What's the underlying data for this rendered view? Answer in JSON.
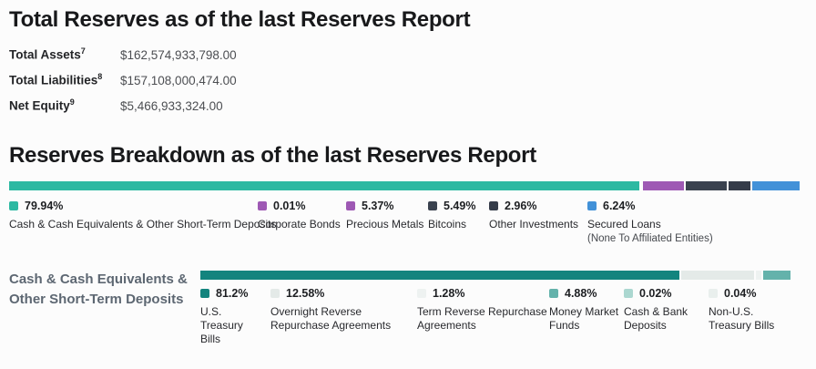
{
  "total_reserves": {
    "title": "Total Reserves as of the last Reserves Report",
    "rows": [
      {
        "label": "Total Assets",
        "footnote": "7",
        "value": "$162,574,933,798.00"
      },
      {
        "label": "Total Liabilities",
        "footnote": "8",
        "value": "$157,108,000,474.00"
      },
      {
        "label": "Net Equity",
        "footnote": "9",
        "value": "$5,466,933,324.00"
      }
    ]
  },
  "reserves_breakdown": {
    "title": "Reserves Breakdown as of the last Reserves Report",
    "items": [
      {
        "label": "Cash & Cash Equivalents & Other Short-Term Deposits",
        "pct": "79.94%",
        "value": 79.94,
        "color": "#2db9a2"
      },
      {
        "label": "Corporate Bonds",
        "pct": "0.01%",
        "value": 0.01,
        "color": "#9e59b4"
      },
      {
        "label": "Precious Metals",
        "pct": "5.37%",
        "value": 5.37,
        "color": "#9e59b4"
      },
      {
        "label": "Bitcoins",
        "pct": "5.49%",
        "value": 5.49,
        "color": "#3a424f"
      },
      {
        "label": "Other Investments",
        "pct": "2.96%",
        "value": 2.96,
        "color": "#353c49"
      },
      {
        "label": "Secured Loans",
        "sublabel": "(None To Affiliated Entities)",
        "pct": "6.24%",
        "value": 6.24,
        "color": "#4291d8"
      }
    ]
  },
  "cash_breakdown": {
    "section_label_line1": "Cash & Cash Equivalents &",
    "section_label_line2": "Other Short-Term Deposits",
    "items": [
      {
        "label": "U.S. Treasury Bills",
        "pct": "81.2%",
        "value": 81.2,
        "color": "#13847e"
      },
      {
        "label": "Overnight Reverse Repurchase Agreements",
        "pct": "12.58%",
        "value": 12.58,
        "color": "#e4eae8"
      },
      {
        "label": "Term Reverse Repurchase Agreements",
        "pct": "1.28%",
        "value": 1.28,
        "color": "#eef2f1"
      },
      {
        "label": "Money Market Funds",
        "pct": "4.88%",
        "value": 4.88,
        "color": "#64b2ab"
      },
      {
        "label": "Cash & Bank Deposits",
        "pct": "0.02%",
        "value": 0.02,
        "color": "#abd7d0"
      },
      {
        "label": "Non-U.S. Treasury Bills",
        "pct": "0.04%",
        "value": 0.04,
        "color": "#e9efed"
      }
    ]
  },
  "chart_data": [
    {
      "type": "bar",
      "variant": "stacked-horizontal",
      "title": "Reserves Breakdown as of the last Reserves Report",
      "categories": [
        "Cash & Cash Equivalents & Other Short-Term Deposits",
        "Corporate Bonds",
        "Precious Metals",
        "Bitcoins",
        "Other Investments",
        "Secured Loans (None To Affiliated Entities)"
      ],
      "values": [
        79.94,
        0.01,
        5.37,
        5.49,
        2.96,
        6.24
      ],
      "unit": "%",
      "xlim": [
        0,
        100
      ],
      "legend_position": "below",
      "colors": [
        "#2db9a2",
        "#9e59b4",
        "#9e59b4",
        "#3a424f",
        "#353c49",
        "#4291d8"
      ]
    },
    {
      "type": "bar",
      "variant": "stacked-horizontal",
      "title": "Cash & Cash Equivalents & Other Short-Term Deposits",
      "categories": [
        "U.S. Treasury Bills",
        "Overnight Reverse Repurchase Agreements",
        "Term Reverse Repurchase Agreements",
        "Money Market Funds",
        "Cash & Bank Deposits",
        "Non-U.S. Treasury Bills"
      ],
      "values": [
        81.2,
        12.58,
        1.28,
        4.88,
        0.02,
        0.04
      ],
      "unit": "%",
      "xlim": [
        0,
        100
      ],
      "legend_position": "below",
      "colors": [
        "#13847e",
        "#e4eae8",
        "#eef2f1",
        "#64b2ab",
        "#abd7d0",
        "#e9efed"
      ]
    }
  ]
}
